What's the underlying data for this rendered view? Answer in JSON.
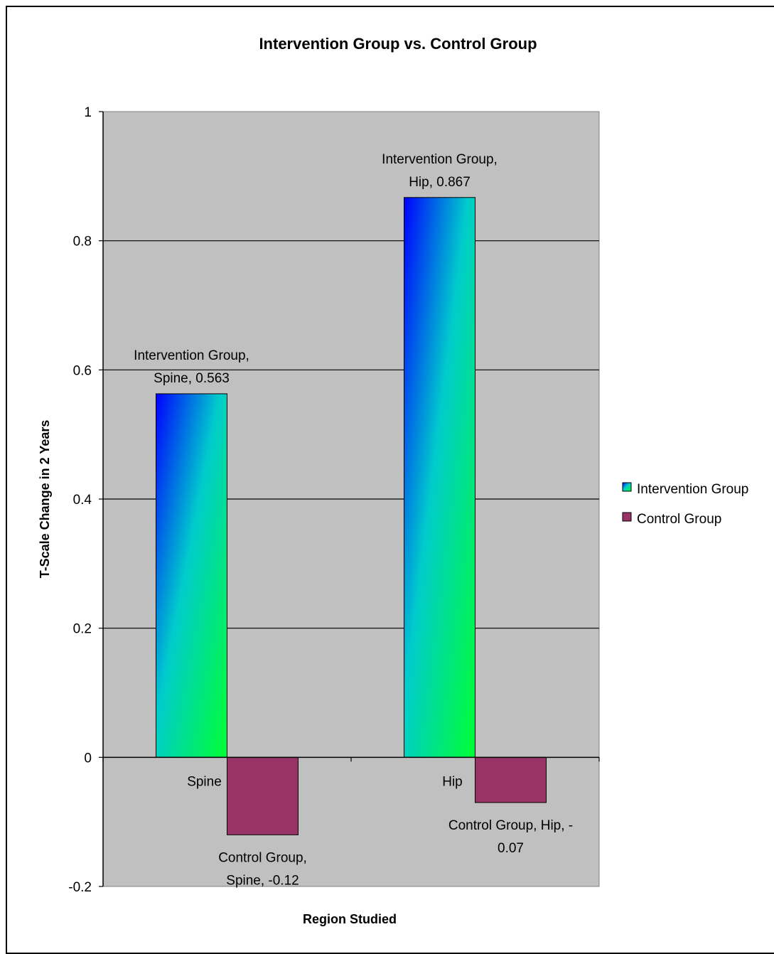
{
  "chart_data": {
    "type": "bar",
    "title": "Intervention Group vs. Control Group",
    "xlabel": "Region Studied",
    "ylabel": "T-Scale Change in 2 Years",
    "categories": [
      "Spine",
      "Hip"
    ],
    "series": [
      {
        "name": "Intervention Group",
        "values": [
          0.563,
          0.867
        ],
        "labels": [
          [
            "Intervention Group,",
            "Spine, 0.563"
          ],
          [
            "Intervention Group,",
            "Hip, 0.867"
          ]
        ]
      },
      {
        "name": "Control Group",
        "values": [
          -0.12,
          -0.07
        ],
        "labels": [
          [
            "Control Group,",
            "Spine, -0.12"
          ],
          [
            "Control Group, Hip, -",
            "0.07"
          ]
        ]
      }
    ],
    "ylim": [
      -0.2,
      1
    ],
    "yticks": [
      "1",
      "0.8",
      "0.6",
      "0.4",
      "0.2",
      "0",
      "-0.2"
    ],
    "grid": true,
    "legend_position": "right",
    "colors": {
      "plot_background": "#c0c0c0",
      "control_group": "#993366",
      "intervention_gradient": [
        "#0000ff",
        "#00cccc",
        "#00ff33"
      ]
    }
  }
}
